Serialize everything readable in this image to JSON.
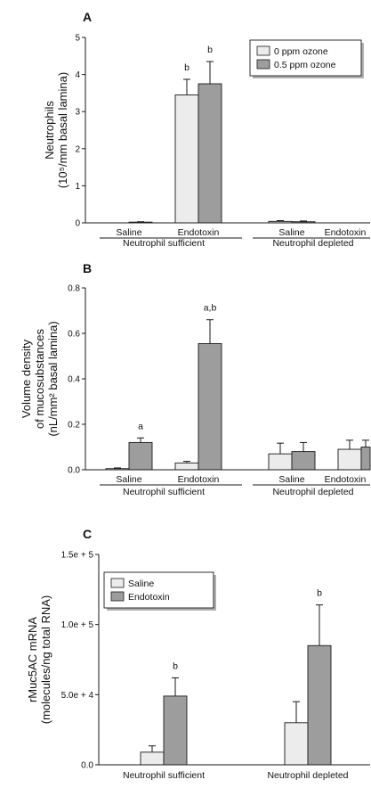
{
  "colors": {
    "light": "#ececec",
    "dark": "#9d9d9d",
    "stroke": "#1a1a1a"
  },
  "chart_data": [
    {
      "panel": "A",
      "type": "bar",
      "ylabel": [
        "Neutrophils",
        "(10⁵/mm basal lamina)"
      ],
      "ylim": [
        0,
        5
      ],
      "yticks": [
        "0",
        "1",
        "2",
        "3",
        "4",
        "5"
      ],
      "categories": [
        "Saline",
        "Endotoxin",
        "Saline",
        "Endotoxin"
      ],
      "groups": [
        "Neutrophil sufficient",
        "Neutrophil depleted"
      ],
      "legend": {
        "position": "top-right"
      },
      "series": [
        {
          "name": "0 ppm ozone",
          "color": "light",
          "values": [
            0,
            3.45,
            0.04,
            0
          ],
          "errors": [
            0,
            0.42,
            0.02,
            0
          ]
        },
        {
          "name": "0.5 ppm ozone",
          "color": "dark",
          "values": [
            0.02,
            3.75,
            0.03,
            0
          ],
          "errors": [
            0.01,
            0.6,
            0.02,
            0
          ]
        }
      ],
      "annotations": [
        {
          "category": 1,
          "series": 0,
          "text": "b"
        },
        {
          "category": 1,
          "series": 1,
          "text": "b"
        }
      ]
    },
    {
      "panel": "B",
      "type": "bar",
      "ylabel": [
        "Volume density",
        "of mucosubstances",
        "(nL/mm² basal lamina)"
      ],
      "ylim": [
        0,
        0.8
      ],
      "yticks": [
        "0.0",
        "0.2",
        "0.4",
        "0.6",
        "0.8"
      ],
      "categories": [
        "Saline",
        "Endotoxin",
        "Saline",
        "Endotoxin"
      ],
      "groups": [
        "Neutrophil sufficient",
        "Neutrophil depleted"
      ],
      "series": [
        {
          "color": "light",
          "values": [
            0.005,
            0.03,
            0.07,
            0.09
          ],
          "errors": [
            0.003,
            0.007,
            0.047,
            0.04
          ]
        },
        {
          "color": "dark",
          "values": [
            0.12,
            0.555,
            0.08,
            0.1
          ],
          "errors": [
            0.02,
            0.105,
            0.04,
            0.03
          ]
        }
      ],
      "annotations": [
        {
          "category": 0,
          "series": 1,
          "text": "a"
        },
        {
          "category": 1,
          "series": 1,
          "text": "a,b"
        }
      ]
    },
    {
      "panel": "C",
      "type": "bar",
      "ylabel": [
        "rMuc5AC mRNA",
        "(molecules/ng total RNA)"
      ],
      "ylim": [
        0,
        150000
      ],
      "yticks": [
        "0.0",
        "5.0e + 4",
        "1.0e + 5",
        "1.5e + 5"
      ],
      "categories": [
        "Neutrophil sufficient",
        "Neutrophil depleted"
      ],
      "legend": {
        "position": "top-left"
      },
      "series": [
        {
          "name": "Saline",
          "color": "light",
          "values": [
            9000,
            30000
          ],
          "errors": [
            4500,
            15000
          ]
        },
        {
          "name": "Endotoxin",
          "color": "dark",
          "values": [
            49000,
            85000
          ],
          "errors": [
            13000,
            29000
          ]
        }
      ],
      "annotations": [
        {
          "category": 0,
          "series": 1,
          "text": "b"
        },
        {
          "category": 1,
          "series": 1,
          "text": "b"
        }
      ]
    }
  ]
}
